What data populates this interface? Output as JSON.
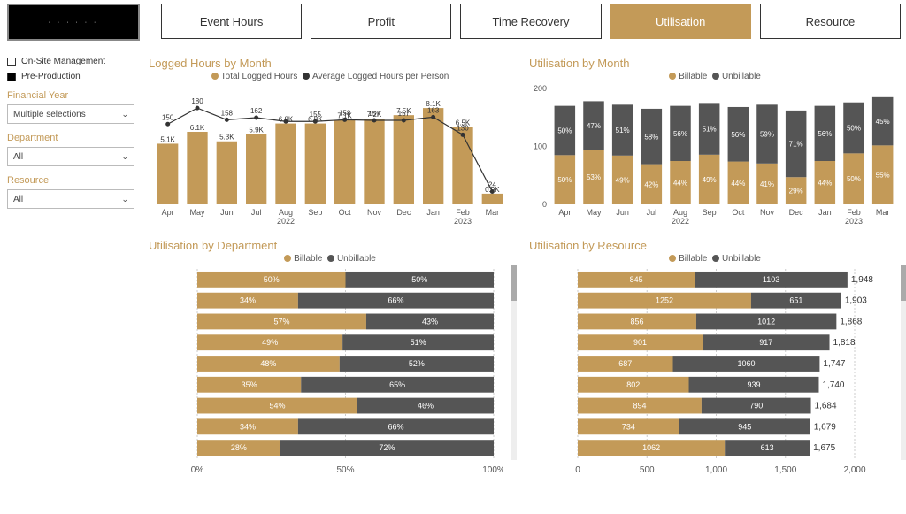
{
  "colors": {
    "gold": "#c39a58",
    "dark": "#555555",
    "grid": "#cccccc",
    "text": "#333333",
    "bg": "#ffffff"
  },
  "tabs": [
    {
      "label": "Event Hours",
      "active": false
    },
    {
      "label": "Profit",
      "active": false
    },
    {
      "label": "Time Recovery",
      "active": false
    },
    {
      "label": "Utilisation",
      "active": true
    },
    {
      "label": "Resource",
      "active": false
    }
  ],
  "sidebar": {
    "legend": [
      {
        "label": "On-Site Management",
        "checked": false
      },
      {
        "label": "Pre-Production",
        "checked": true
      }
    ],
    "filters": [
      {
        "label": "Financial Year",
        "value": "Multiple selections"
      },
      {
        "label": "Department",
        "value": "All"
      },
      {
        "label": "Resource",
        "value": "All"
      }
    ]
  },
  "logged_hours": {
    "title": "Logged Hours by Month",
    "legend_bar": "Total Logged Hours",
    "legend_line": "Average Logged Hours per Person",
    "categories": [
      "Apr",
      "May",
      "Jun",
      "Jul",
      "Aug 2022",
      "Sep",
      "Oct",
      "Nov",
      "Dec",
      "Jan",
      "Feb 2023",
      "Mar"
    ],
    "bar_values": [
      5.1,
      6.1,
      5.3,
      5.9,
      6.8,
      6.8,
      7.1,
      7.2,
      7.5,
      8.1,
      6.5,
      0.9
    ],
    "bar_labels": [
      "5.1K",
      "6.1K",
      "5.3K",
      "5.9K",
      "6.8K",
      "6.8K",
      "7.1K",
      "7.2K",
      "7.5K",
      "8.1K",
      "6.5K",
      "0.9K"
    ],
    "line_values": [
      150,
      180,
      158,
      162,
      155,
      155,
      158,
      157,
      157,
      163,
      130,
      24
    ],
    "line_labels": [
      "150",
      "180",
      "158",
      "162",
      "",
      "155",
      "158",
      "157",
      "157",
      "163",
      "130",
      "24"
    ],
    "bar_color": "#c39a58",
    "line_color": "#333333",
    "y_max_bar": 9,
    "y_max_line": 200
  },
  "util_month": {
    "title": "Utilisation by Month",
    "legend_a": "Billable",
    "legend_b": "Unbillable",
    "categories": [
      "Apr",
      "May",
      "Jun",
      "Jul",
      "Aug 2022",
      "Sep",
      "Oct",
      "Nov",
      "Dec",
      "Jan",
      "Feb 2023",
      "Mar"
    ],
    "billable": [
      50,
      53,
      49,
      42,
      44,
      49,
      44,
      41,
      29,
      44,
      50,
      55
    ],
    "unbillable": [
      50,
      47,
      51,
      58,
      56,
      51,
      56,
      59,
      71,
      56,
      50,
      45
    ],
    "color_a": "#c39a58",
    "color_b": "#555555",
    "y_ticks": [
      0,
      100,
      200
    ],
    "y_max": 200,
    "heights": [
      170,
      178,
      172,
      165,
      170,
      175,
      168,
      172,
      162,
      170,
      176,
      185
    ]
  },
  "util_dept": {
    "title": "Utilisation by Department",
    "legend_a": "Billable",
    "legend_b": "Unbillable",
    "rows": [
      {
        "a": 50,
        "b": 50
      },
      {
        "a": 34,
        "b": 66
      },
      {
        "a": 57,
        "b": 43
      },
      {
        "a": 49,
        "b": 51
      },
      {
        "a": 48,
        "b": 52
      },
      {
        "a": 35,
        "b": 65
      },
      {
        "a": 54,
        "b": 46
      },
      {
        "a": 34,
        "b": 66
      },
      {
        "a": 28,
        "b": 72
      }
    ],
    "x_ticks": [
      "0%",
      "50%",
      "100%"
    ]
  },
  "util_res": {
    "title": "Utilisation by Resource",
    "legend_a": "Billable",
    "legend_b": "Unbillable",
    "rows": [
      {
        "a": 845,
        "b": 1103,
        "total": "1,948"
      },
      {
        "a": 1252,
        "b": 651,
        "total": "1,903"
      },
      {
        "a": 856,
        "b": 1012,
        "total": "1,868"
      },
      {
        "a": 901,
        "b": 917,
        "total": "1,818"
      },
      {
        "a": 687,
        "b": 1060,
        "total": "1,747"
      },
      {
        "a": 802,
        "b": 939,
        "total": "1,740"
      },
      {
        "a": 894,
        "b": 790,
        "total": "1,684"
      },
      {
        "a": 734,
        "b": 945,
        "total": "1,679"
      },
      {
        "a": 1062,
        "b": 613,
        "total": "1,675"
      }
    ],
    "x_ticks": [
      "0",
      "500",
      "1,000",
      "1,500",
      "2,000"
    ],
    "x_max": 2000
  }
}
